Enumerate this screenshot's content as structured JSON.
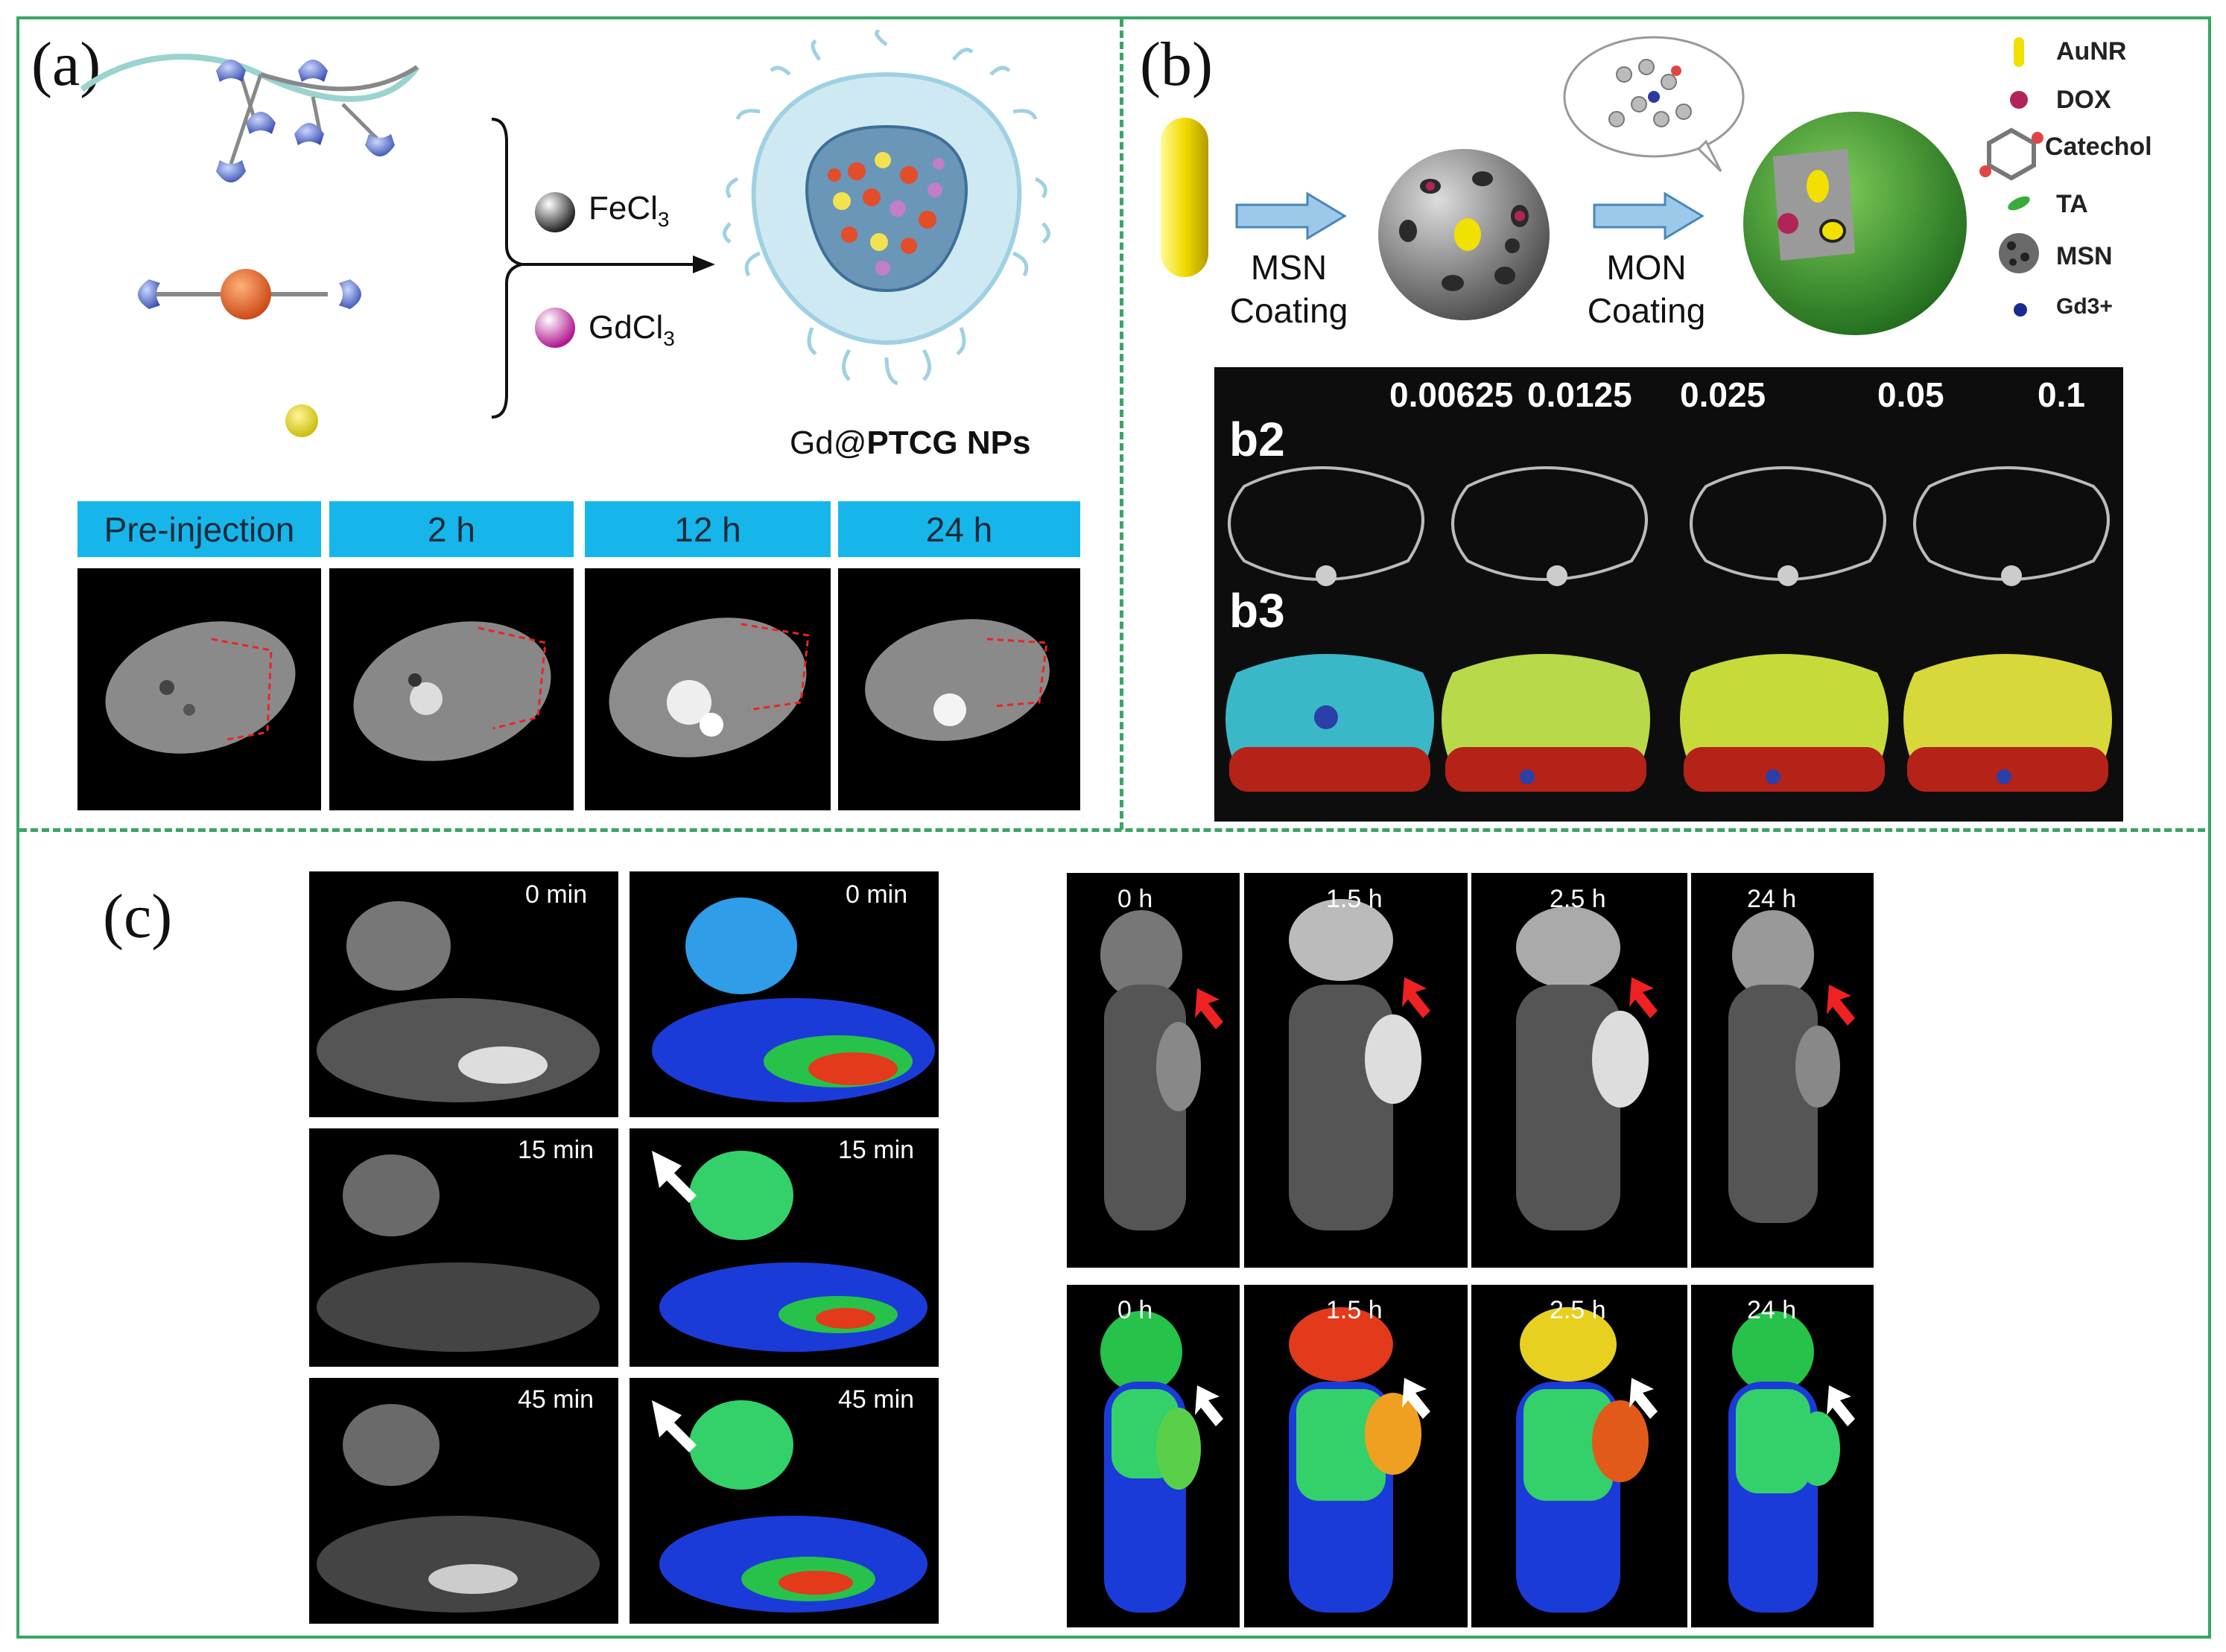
{
  "panel_a": {
    "label": "(a)",
    "reagent1": "FeCl",
    "reagent1_sub": "3",
    "reagent2": "GdCl",
    "reagent2_sub": "3",
    "product_prefix": "Gd@",
    "product_bold": "PTCG NPs",
    "timepoints": [
      "Pre-injection",
      "2 h",
      "12 h",
      "24 h"
    ]
  },
  "panel_b": {
    "label": "(b)",
    "step1": [
      "MSN",
      "Coating"
    ],
    "step2": [
      "MON",
      "Coating"
    ],
    "legend": [
      "AuNR",
      "DOX",
      "Catechol",
      "TA",
      "MSN",
      "Gd3+"
    ],
    "row_labels": [
      "b2",
      "b3"
    ],
    "concentrations": [
      "0.00625",
      "0.0125",
      "0.025",
      "0.05",
      "0.1"
    ]
  },
  "panel_c": {
    "label": "(c)",
    "left_times": [
      "0 min",
      "15 min",
      "45 min"
    ],
    "right_times": [
      "0 h",
      "1.5 h",
      "2.5 h",
      "24 h"
    ]
  },
  "colors": {
    "border_green": "#3aa664",
    "tag_blue": "#17b6ea",
    "arrow_blue": "#9cc9ea"
  }
}
